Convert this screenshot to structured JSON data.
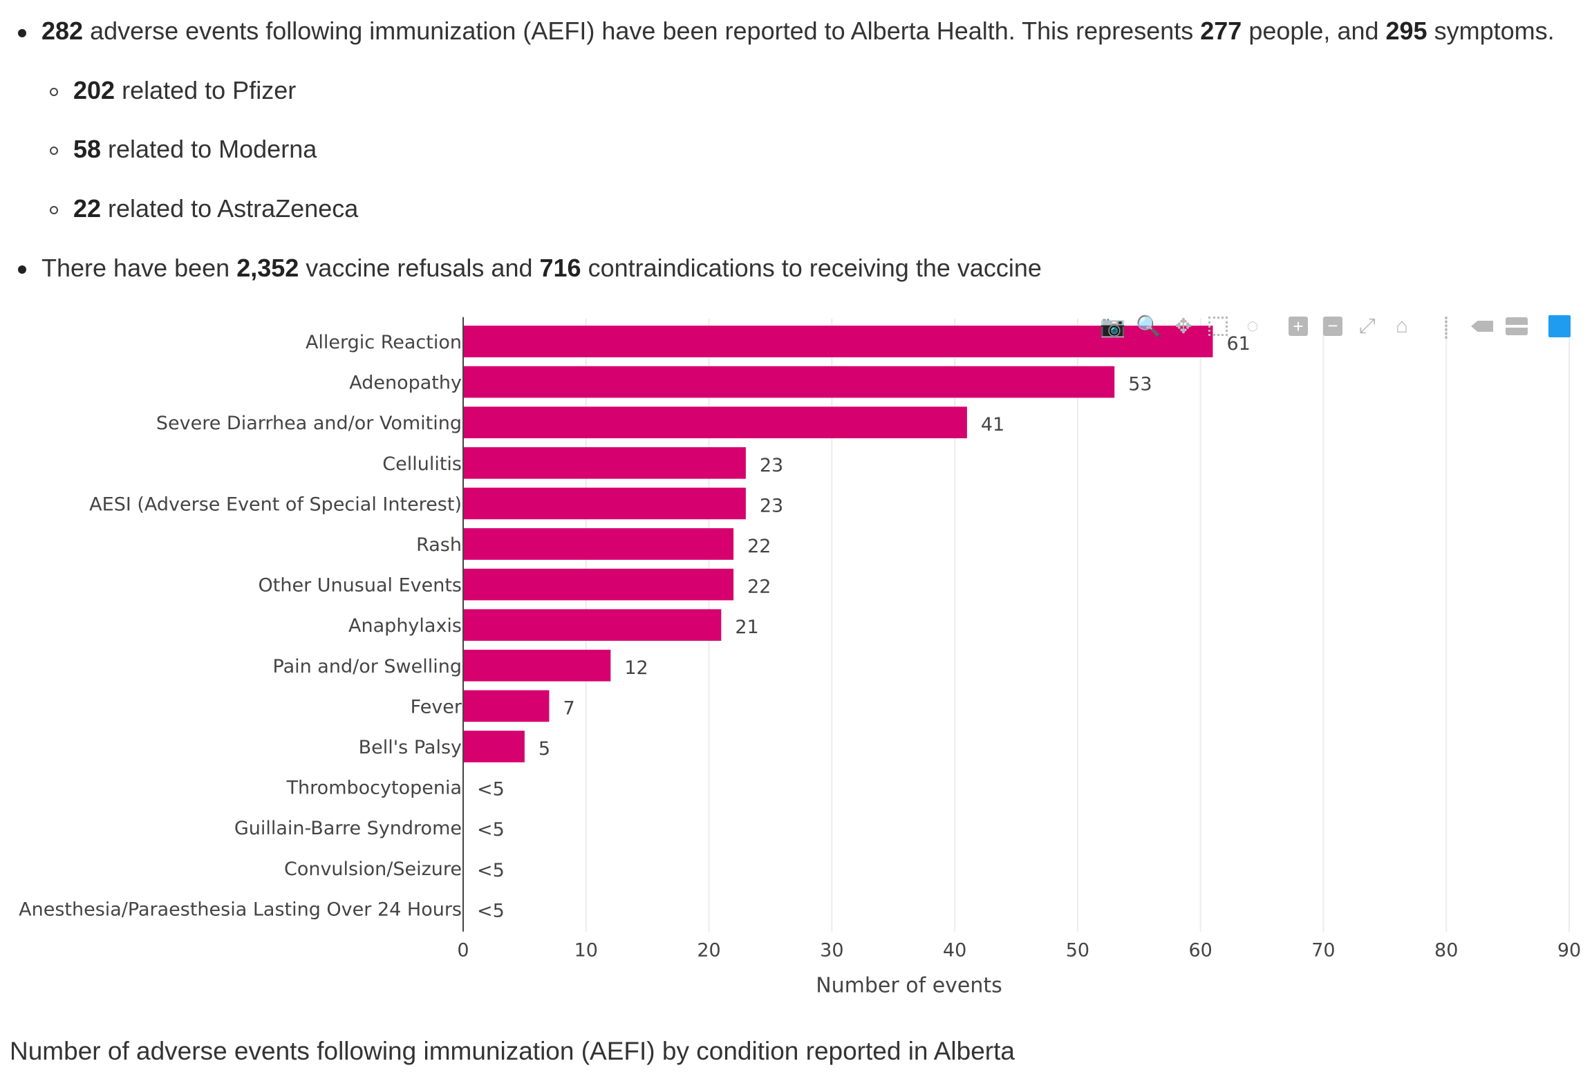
{
  "summary": {
    "line1": {
      "n1": "282",
      "t1": " adverse events following immunization (AEFI) have been reported to Alberta Health. This represents ",
      "n2": "277",
      "t2": " people, and ",
      "n3": "295",
      "t3": " symptoms."
    },
    "sub": [
      {
        "n": "202",
        "t": " related to Pfizer"
      },
      {
        "n": "58",
        "t": " related to Moderna"
      },
      {
        "n": "22",
        "t": " related to AstraZeneca"
      }
    ],
    "line2": {
      "t1": "There have been ",
      "n1": "2,352",
      "t2": " vaccine refusals and ",
      "n2": "716",
      "t3": " contraindications to receiving the vaccine"
    }
  },
  "modebar": [
    "camera-icon",
    "zoom-icon",
    "pan-icon",
    "box-select-icon",
    "lasso-select-icon",
    "zoom-in-icon",
    "zoom-out-icon",
    "autoscale-icon",
    "reset-axes-icon",
    "spike-lines-icon",
    "hover-closest-icon",
    "hover-compare-icon",
    "plotly-logo-icon"
  ],
  "chart_data": {
    "type": "bar",
    "orientation": "horizontal",
    "categories": [
      "Allergic Reaction",
      "Adenopathy",
      "Severe Diarrhea and/or Vomiting",
      "Cellulitis",
      "AESI (Adverse Event of Special Interest)",
      "Rash",
      "Other Unusual Events",
      "Anaphylaxis",
      "Pain and/or Swelling",
      "Fever",
      "Bell's Palsy",
      "Thrombocytopenia",
      "Guillain-Barre Syndrome",
      "Convulsion/Seizure",
      "Anesthesia/Paraesthesia Lasting Over 24 Hours"
    ],
    "values": [
      61,
      53,
      41,
      23,
      23,
      22,
      22,
      21,
      12,
      7,
      5,
      null,
      null,
      null,
      null
    ],
    "labels": [
      "61",
      "53",
      "41",
      "23",
      "23",
      "22",
      "22",
      "21",
      "12",
      "7",
      "5",
      "<5",
      "<5",
      "<5",
      "<5"
    ],
    "xlabel": "Number of events",
    "xlim": [
      0,
      90
    ],
    "xticks": [
      0,
      10,
      20,
      30,
      40,
      50,
      60,
      70,
      80,
      90
    ],
    "bar_color": "#d6006f",
    "grid": true
  },
  "caption": "Number of adverse events following immunization (AEFI) by condition reported in Alberta"
}
